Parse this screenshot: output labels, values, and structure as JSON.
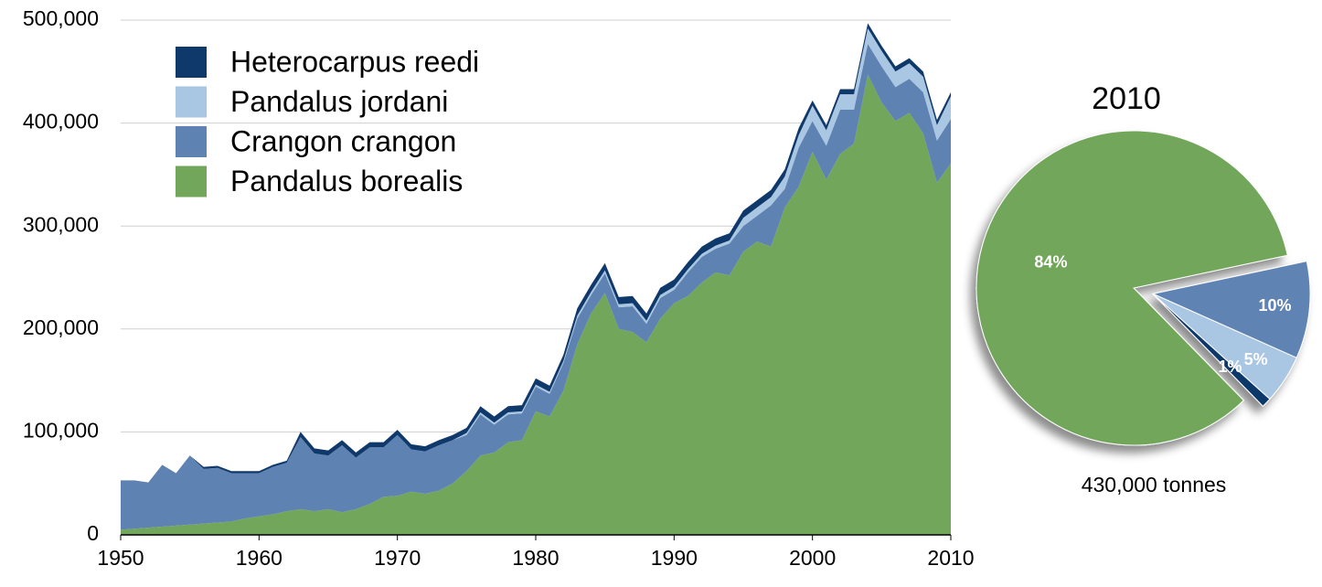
{
  "chart_data": [
    {
      "type": "stacked_area",
      "x": [
        1950,
        1951,
        1952,
        1953,
        1954,
        1955,
        1956,
        1957,
        1958,
        1959,
        1960,
        1961,
        1962,
        1963,
        1964,
        1965,
        1966,
        1967,
        1968,
        1969,
        1970,
        1971,
        1972,
        1973,
        1974,
        1975,
        1976,
        1977,
        1978,
        1979,
        1980,
        1981,
        1982,
        1983,
        1984,
        1985,
        1986,
        1987,
        1988,
        1989,
        1990,
        1991,
        1992,
        1993,
        1994,
        1995,
        1996,
        1997,
        1998,
        1999,
        2000,
        2001,
        2002,
        2003,
        2004,
        2005,
        2006,
        2007,
        2008,
        2009,
        2010
      ],
      "series": [
        {
          "name": "Pandalus borealis",
          "color": "#72a65a",
          "values": [
            5000,
            6000,
            7000,
            8000,
            9000,
            10000,
            11000,
            12000,
            13000,
            16000,
            18000,
            20000,
            23000,
            25000,
            23000,
            25000,
            22000,
            25000,
            30000,
            37000,
            38000,
            42000,
            40000,
            43000,
            50000,
            62000,
            77000,
            80000,
            90000,
            92000,
            120000,
            115000,
            140000,
            185000,
            215000,
            235000,
            200000,
            197000,
            187000,
            210000,
            225000,
            232000,
            245000,
            255000,
            252000,
            275000,
            285000,
            280000,
            318000,
            338000,
            372000,
            345000,
            370000,
            380000,
            447000,
            420000,
            402000,
            410000,
            390000,
            342000,
            361000
          ]
        },
        {
          "name": "Crangon crangon",
          "color": "#5e83b3",
          "values": [
            48000,
            47000,
            44000,
            60000,
            51000,
            67000,
            53000,
            53000,
            47000,
            44000,
            42000,
            46000,
            47000,
            70000,
            56000,
            52000,
            65000,
            50000,
            55000,
            48000,
            59000,
            41000,
            41000,
            44000,
            42000,
            35000,
            40000,
            27000,
            27000,
            26000,
            24000,
            22000,
            27000,
            25000,
            18000,
            19000,
            21000,
            25000,
            18000,
            20000,
            13000,
            23000,
            25000,
            23000,
            31000,
            25000,
            25000,
            40000,
            18000,
            38000,
            30000,
            33000,
            43000,
            33000,
            30000,
            35000,
            33000,
            33000,
            40000,
            41000,
            43000
          ]
        },
        {
          "name": "Pandalus jordani",
          "color": "#a9c6e2",
          "values": [
            0,
            0,
            0,
            0,
            0,
            0,
            0,
            0,
            0,
            0,
            0,
            0,
            0,
            0,
            0,
            0,
            0,
            0,
            0,
            0,
            0,
            0,
            0,
            0,
            0,
            2000,
            2000,
            2000,
            2000,
            2000,
            2000,
            2000,
            2000,
            3000,
            3000,
            3000,
            3000,
            3000,
            3000,
            3000,
            3000,
            3000,
            3000,
            3000,
            3000,
            8000,
            8000,
            8000,
            12000,
            12000,
            15000,
            15000,
            15000,
            15000,
            15000,
            15000,
            15000,
            15000,
            15000,
            15000,
            22000
          ]
        },
        {
          "name": "Heterocarpus reedi",
          "color": "#10396b",
          "values": [
            0,
            0,
            0,
            0,
            0,
            0,
            2000,
            2000,
            2000,
            2000,
            2000,
            2000,
            2000,
            5000,
            5000,
            5000,
            5000,
            5000,
            5000,
            5000,
            5000,
            5000,
            5000,
            5000,
            5000,
            5000,
            6000,
            6000,
            6000,
            6000,
            6000,
            6000,
            6000,
            7000,
            7000,
            7000,
            7000,
            7000,
            7000,
            7000,
            7000,
            7000,
            7000,
            7000,
            7000,
            7000,
            7000,
            7000,
            7000,
            7000,
            5000,
            5000,
            5000,
            5000,
            5000,
            5000,
            5000,
            5000,
            5000,
            5000,
            4000
          ]
        }
      ],
      "xlim": [
        1950,
        2010
      ],
      "xticks": [
        1950,
        1960,
        1970,
        1980,
        1990,
        2000,
        2010
      ],
      "ylim": [
        0,
        500000
      ],
      "yticks": [
        0,
        {
          "value": 100000,
          "label": "100,000"
        },
        {
          "value": 200000,
          "label": "200,000"
        },
        {
          "value": 300000,
          "label": "300,000"
        },
        {
          "value": 400000,
          "label": "400,000"
        },
        {
          "value": 500000,
          "label": "500,000"
        }
      ],
      "grid": true,
      "legend": "top-left"
    },
    {
      "type": "pie",
      "title": "2010",
      "subtitle": "430,000 tonnes",
      "categories": [
        "Pandalus borealis",
        "Crangon crangon",
        "Pandalus jordani",
        "Heterocarpus reedi"
      ],
      "values": [
        84,
        10,
        5,
        1
      ],
      "value_labels": [
        "84%",
        "10%",
        "5%",
        "1%"
      ],
      "colors": [
        "#72a65a",
        "#5e83b3",
        "#a9c6e2",
        "#10396b"
      ]
    }
  ]
}
